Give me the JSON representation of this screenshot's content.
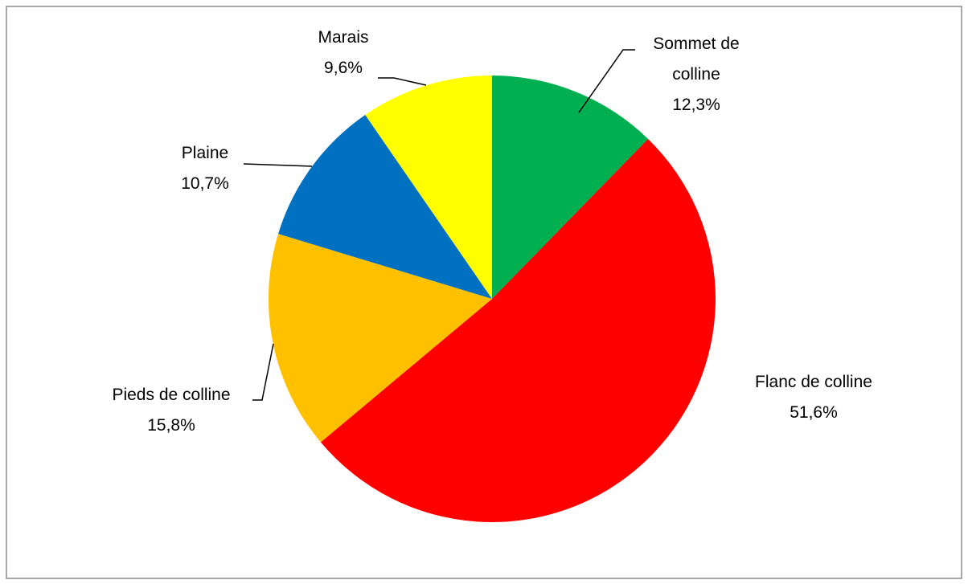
{
  "chart_data": {
    "type": "pie",
    "categories": [
      "Sommet de colline",
      "Flanc de colline",
      "Pieds de colline",
      "Plaine",
      "Marais"
    ],
    "values": [
      12.3,
      51.6,
      15.8,
      10.7,
      9.6
    ],
    "value_labels": [
      "12,3%",
      "51,6%",
      "15,8%",
      "10,7%",
      "9,6%"
    ],
    "colors": [
      "#00b050",
      "#ff0000",
      "#ffc000",
      "#0070c0",
      "#ffff00"
    ]
  }
}
